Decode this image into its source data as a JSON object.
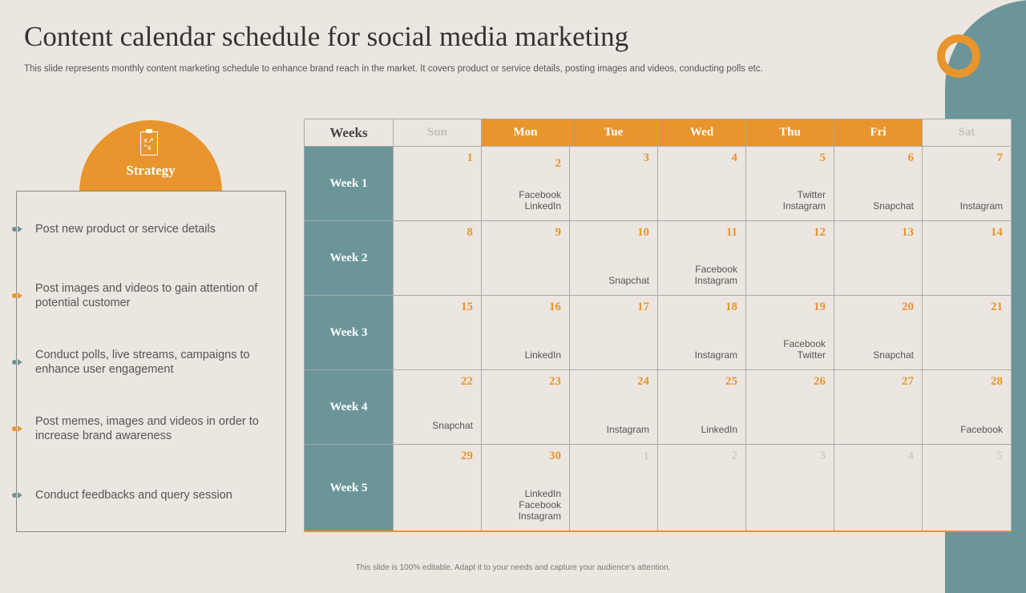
{
  "title": "Content calendar schedule for social media marketing",
  "subtitle": "This slide represents monthly content marketing schedule to enhance brand reach in the market. It covers product or service details, posting images and videos, conducting polls etc.",
  "footer": "This slide is 100% editable. Adapt it to your needs and capture your audience’s attention.",
  "colors": {
    "accent": "#E8952D",
    "teal": "#6B9599",
    "background": "#ECE6E0"
  },
  "strategy": {
    "icon": "clipboard-strategy-icon",
    "label": "Strategy",
    "items": [
      "Post new product or service details",
      "Post images and videos to gain attention of potential customer",
      "Conduct polls, live streams, campaigns to enhance user engagement",
      "Post memes, images and videos in order to increase brand awareness",
      "Conduct feedbacks and query session"
    ]
  },
  "calendar": {
    "weeks_header": "Weeks",
    "days": [
      "Sun",
      "Mon",
      "Tue",
      "Wed",
      "Thu",
      "Fri",
      "Sat"
    ],
    "weeks": [
      {
        "label": "Week 1",
        "cells": [
          {
            "num": "1",
            "posts": []
          },
          {
            "num": "2",
            "posts": [
              "Facebook",
              "LinkedIn"
            ]
          },
          {
            "num": "3",
            "posts": []
          },
          {
            "num": "4",
            "posts": []
          },
          {
            "num": "5",
            "posts": [
              "Twitter",
              "Instagram"
            ]
          },
          {
            "num": "6",
            "posts": [
              "Snapchat"
            ]
          },
          {
            "num": "7",
            "posts": [
              "Instagram"
            ]
          }
        ]
      },
      {
        "label": "Week 2",
        "cells": [
          {
            "num": "8",
            "posts": []
          },
          {
            "num": "9",
            "posts": []
          },
          {
            "num": "10",
            "posts": [
              "Snapchat"
            ]
          },
          {
            "num": "11",
            "posts": [
              "Facebook",
              "Instagram"
            ]
          },
          {
            "num": "12",
            "posts": []
          },
          {
            "num": "13",
            "posts": []
          },
          {
            "num": "14",
            "posts": []
          }
        ]
      },
      {
        "label": "Week 3",
        "cells": [
          {
            "num": "15",
            "posts": []
          },
          {
            "num": "16",
            "posts": [
              "LinkedIn"
            ]
          },
          {
            "num": "17",
            "posts": []
          },
          {
            "num": "18",
            "posts": [
              "Instagram"
            ]
          },
          {
            "num": "19",
            "posts": [
              "Facebook",
              "Twitter"
            ]
          },
          {
            "num": "20",
            "posts": [
              "Snapchat"
            ]
          },
          {
            "num": "21",
            "posts": []
          }
        ]
      },
      {
        "label": "Week 4",
        "cells": [
          {
            "num": "22",
            "posts": [
              "Snapchat"
            ]
          },
          {
            "num": "23",
            "posts": []
          },
          {
            "num": "24",
            "posts": [
              "Instagram"
            ]
          },
          {
            "num": "25",
            "posts": [
              "LinkedIn"
            ]
          },
          {
            "num": "26",
            "posts": []
          },
          {
            "num": "27",
            "posts": []
          },
          {
            "num": "28",
            "posts": [
              "Facebook"
            ]
          }
        ]
      },
      {
        "label": "Week 5",
        "cells": [
          {
            "num": "29",
            "posts": []
          },
          {
            "num": "30",
            "posts": [
              "LinkedIn",
              "Facebook",
              "Instagram"
            ]
          },
          {
            "num": "1",
            "posts": [],
            "muted": true
          },
          {
            "num": "2",
            "posts": [],
            "muted": true
          },
          {
            "num": "3",
            "posts": [],
            "muted": true
          },
          {
            "num": "4",
            "posts": [],
            "muted": true
          },
          {
            "num": "5",
            "posts": [],
            "muted": true
          }
        ]
      }
    ]
  }
}
